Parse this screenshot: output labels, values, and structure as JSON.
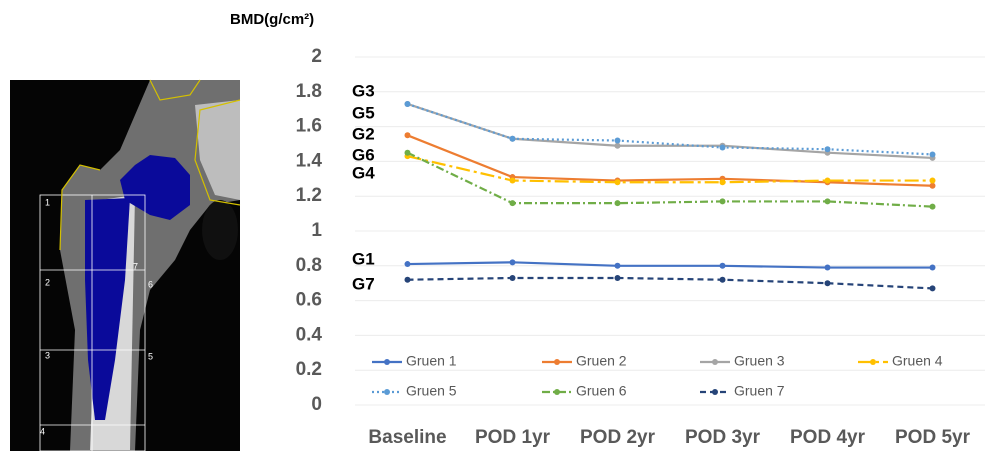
{
  "chart_data": {
    "type": "line",
    "y_axis_title": "BMD(g/cm²)",
    "categories": [
      "Baseline",
      "POD 1yr",
      "POD 2yr",
      "POD 3yr",
      "POD 4yr",
      "POD 5yr"
    ],
    "series": [
      {
        "name": "Gruen 1",
        "color": "#4472c4",
        "dash": "solid",
        "values": [
          0.81,
          0.82,
          0.8,
          0.8,
          0.79,
          0.79
        ]
      },
      {
        "name": "Gruen 2",
        "color": "#ed7d31",
        "dash": "solid",
        "values": [
          1.55,
          1.31,
          1.29,
          1.3,
          1.28,
          1.26
        ]
      },
      {
        "name": "Gruen 3",
        "color": "#a5a5a5",
        "dash": "solid",
        "values": [
          1.73,
          1.53,
          1.49,
          1.49,
          1.45,
          1.42
        ]
      },
      {
        "name": "Gruen 4",
        "color": "#ffc000",
        "dash": "longdashdot",
        "values": [
          1.43,
          1.29,
          1.28,
          1.28,
          1.29,
          1.29
        ]
      },
      {
        "name": "Gruen 5",
        "color": "#5b9bd5",
        "dash": "dot",
        "values": [
          1.73,
          1.53,
          1.52,
          1.48,
          1.47,
          1.44
        ]
      },
      {
        "name": "Gruen 6",
        "color": "#70ad47",
        "dash": "dashdot",
        "values": [
          1.45,
          1.16,
          1.16,
          1.17,
          1.17,
          1.14
        ]
      },
      {
        "name": "Gruen 7",
        "color": "#264478",
        "dash": "dash",
        "values": [
          0.72,
          0.73,
          0.73,
          0.72,
          0.7,
          0.67
        ]
      }
    ],
    "annotations": [
      "G3",
      "G5",
      "G2",
      "G6",
      "G4",
      "G1",
      "G7"
    ],
    "ylim": [
      0,
      2
    ],
    "yticks": [
      0,
      0.2,
      0.4,
      0.6,
      0.8,
      1,
      1.2,
      1.4,
      1.6,
      1.8,
      2
    ],
    "grid": true,
    "legend": "bottom"
  },
  "xray": {
    "zone_labels": [
      "1",
      "2",
      "3",
      "4",
      "5",
      "6",
      "7"
    ]
  }
}
